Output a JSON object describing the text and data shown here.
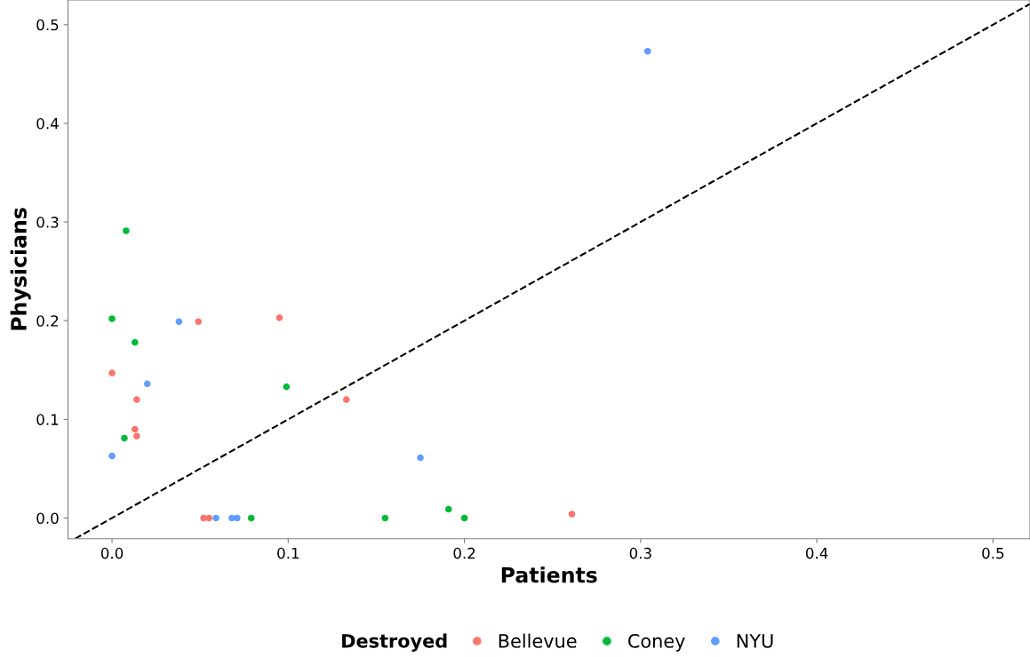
{
  "chart_data": {
    "type": "scatter",
    "xlabel": "Patients",
    "ylabel": "Physicians",
    "legend_title": "Destroyed",
    "legend": "bottom",
    "grid": false,
    "marker": "circle",
    "xlim": [
      -0.025,
      0.521
    ],
    "ylim": [
      -0.021,
      0.525
    ],
    "xticks": [
      {
        "value": 0,
        "label": "0.0"
      },
      0.1,
      0.2,
      0.3,
      0.4,
      0.5
    ],
    "yticks": [
      {
        "value": 0,
        "label": "0.0"
      },
      0.1,
      0.2,
      0.3,
      0.4,
      0.5
    ],
    "series": [
      {
        "name": "Bellevue",
        "color": "#f8766d",
        "x": [
          0,
          0.014,
          0.013,
          0.014,
          0.049,
          0.095,
          0.133,
          0.052,
          0.055,
          0.261
        ],
        "values": [
          0.147,
          0.12,
          0.09,
          0.083,
          0.199,
          0.203,
          0.12,
          0,
          0,
          0.004
        ]
      },
      {
        "name": "Coney",
        "color": "#00ba38",
        "x": [
          0.008,
          0,
          0.013,
          0.007,
          0.099,
          0.079,
          0.155,
          0.191,
          0.2
        ],
        "values": [
          0.291,
          0.202,
          0.178,
          0.081,
          0.133,
          0,
          0,
          0.009,
          0
        ]
      },
      {
        "name": "NYU",
        "color": "#619cff",
        "x": [
          0.304,
          0.038,
          0.02,
          0,
          0.175,
          0.059,
          0.068,
          0.071
        ],
        "values": [
          0.473,
          0.199,
          0.136,
          0.063,
          0.061,
          0,
          0,
          0
        ]
      },
      {
        "type": "line",
        "color": "#000000",
        "line_style": "dashed",
        "marker": "none",
        "x": [
          -0.021,
          0.521
        ],
        "values": [
          -0.021,
          0.521
        ]
      }
    ]
  }
}
